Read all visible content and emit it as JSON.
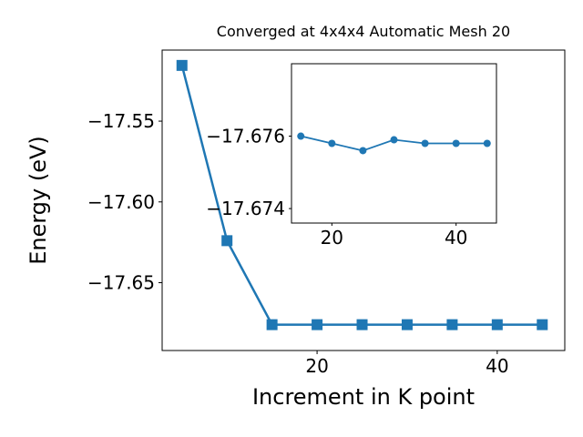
{
  "figure": {
    "background": "#ffffff",
    "accent_color": "#1f77b4"
  },
  "chart_data": [
    {
      "id": "main",
      "type": "line",
      "title": "Converged at 4x4x4 Automatic Mesh 20",
      "xlabel": "Increment in K point",
      "ylabel": "Energy (eV)",
      "marker": "square",
      "color": "#1f77b4",
      "x": [
        5,
        10,
        15,
        20,
        25,
        30,
        35,
        40,
        45
      ],
      "y": [
        -17.5155,
        -17.624,
        -17.676,
        -17.676,
        -17.676,
        -17.676,
        -17.676,
        -17.676,
        -17.676
      ],
      "xlim": [
        2.8,
        47.5
      ],
      "ylim": [
        -17.692,
        -17.506
      ],
      "xticks": [
        20,
        40
      ],
      "xtick_labels": [
        "20",
        "40"
      ],
      "yticks": [
        -17.55,
        -17.6,
        -17.65
      ],
      "ytick_labels": [
        "−17.55",
        "−17.60",
        "−17.65"
      ],
      "grid": false,
      "legend": "none"
    },
    {
      "id": "inset",
      "type": "line",
      "title": "",
      "marker": "circle",
      "color": "#1f77b4",
      "x": [
        15,
        20,
        25,
        30,
        35,
        40,
        45
      ],
      "y": [
        -17.676,
        -17.6758,
        -17.6756,
        -17.6759,
        -17.6758,
        -17.6758,
        -17.6758
      ],
      "xlim": [
        13.5,
        46.5
      ],
      "y_inverted": true,
      "ylim_top": -17.678,
      "ylim_bottom": -17.6736,
      "xticks": [
        20,
        40
      ],
      "xtick_labels": [
        "20",
        "40"
      ],
      "yticks": [
        -17.676,
        -17.674
      ],
      "ytick_labels": [
        "−17.676",
        "−17.674"
      ],
      "grid": false,
      "legend": "none"
    }
  ]
}
